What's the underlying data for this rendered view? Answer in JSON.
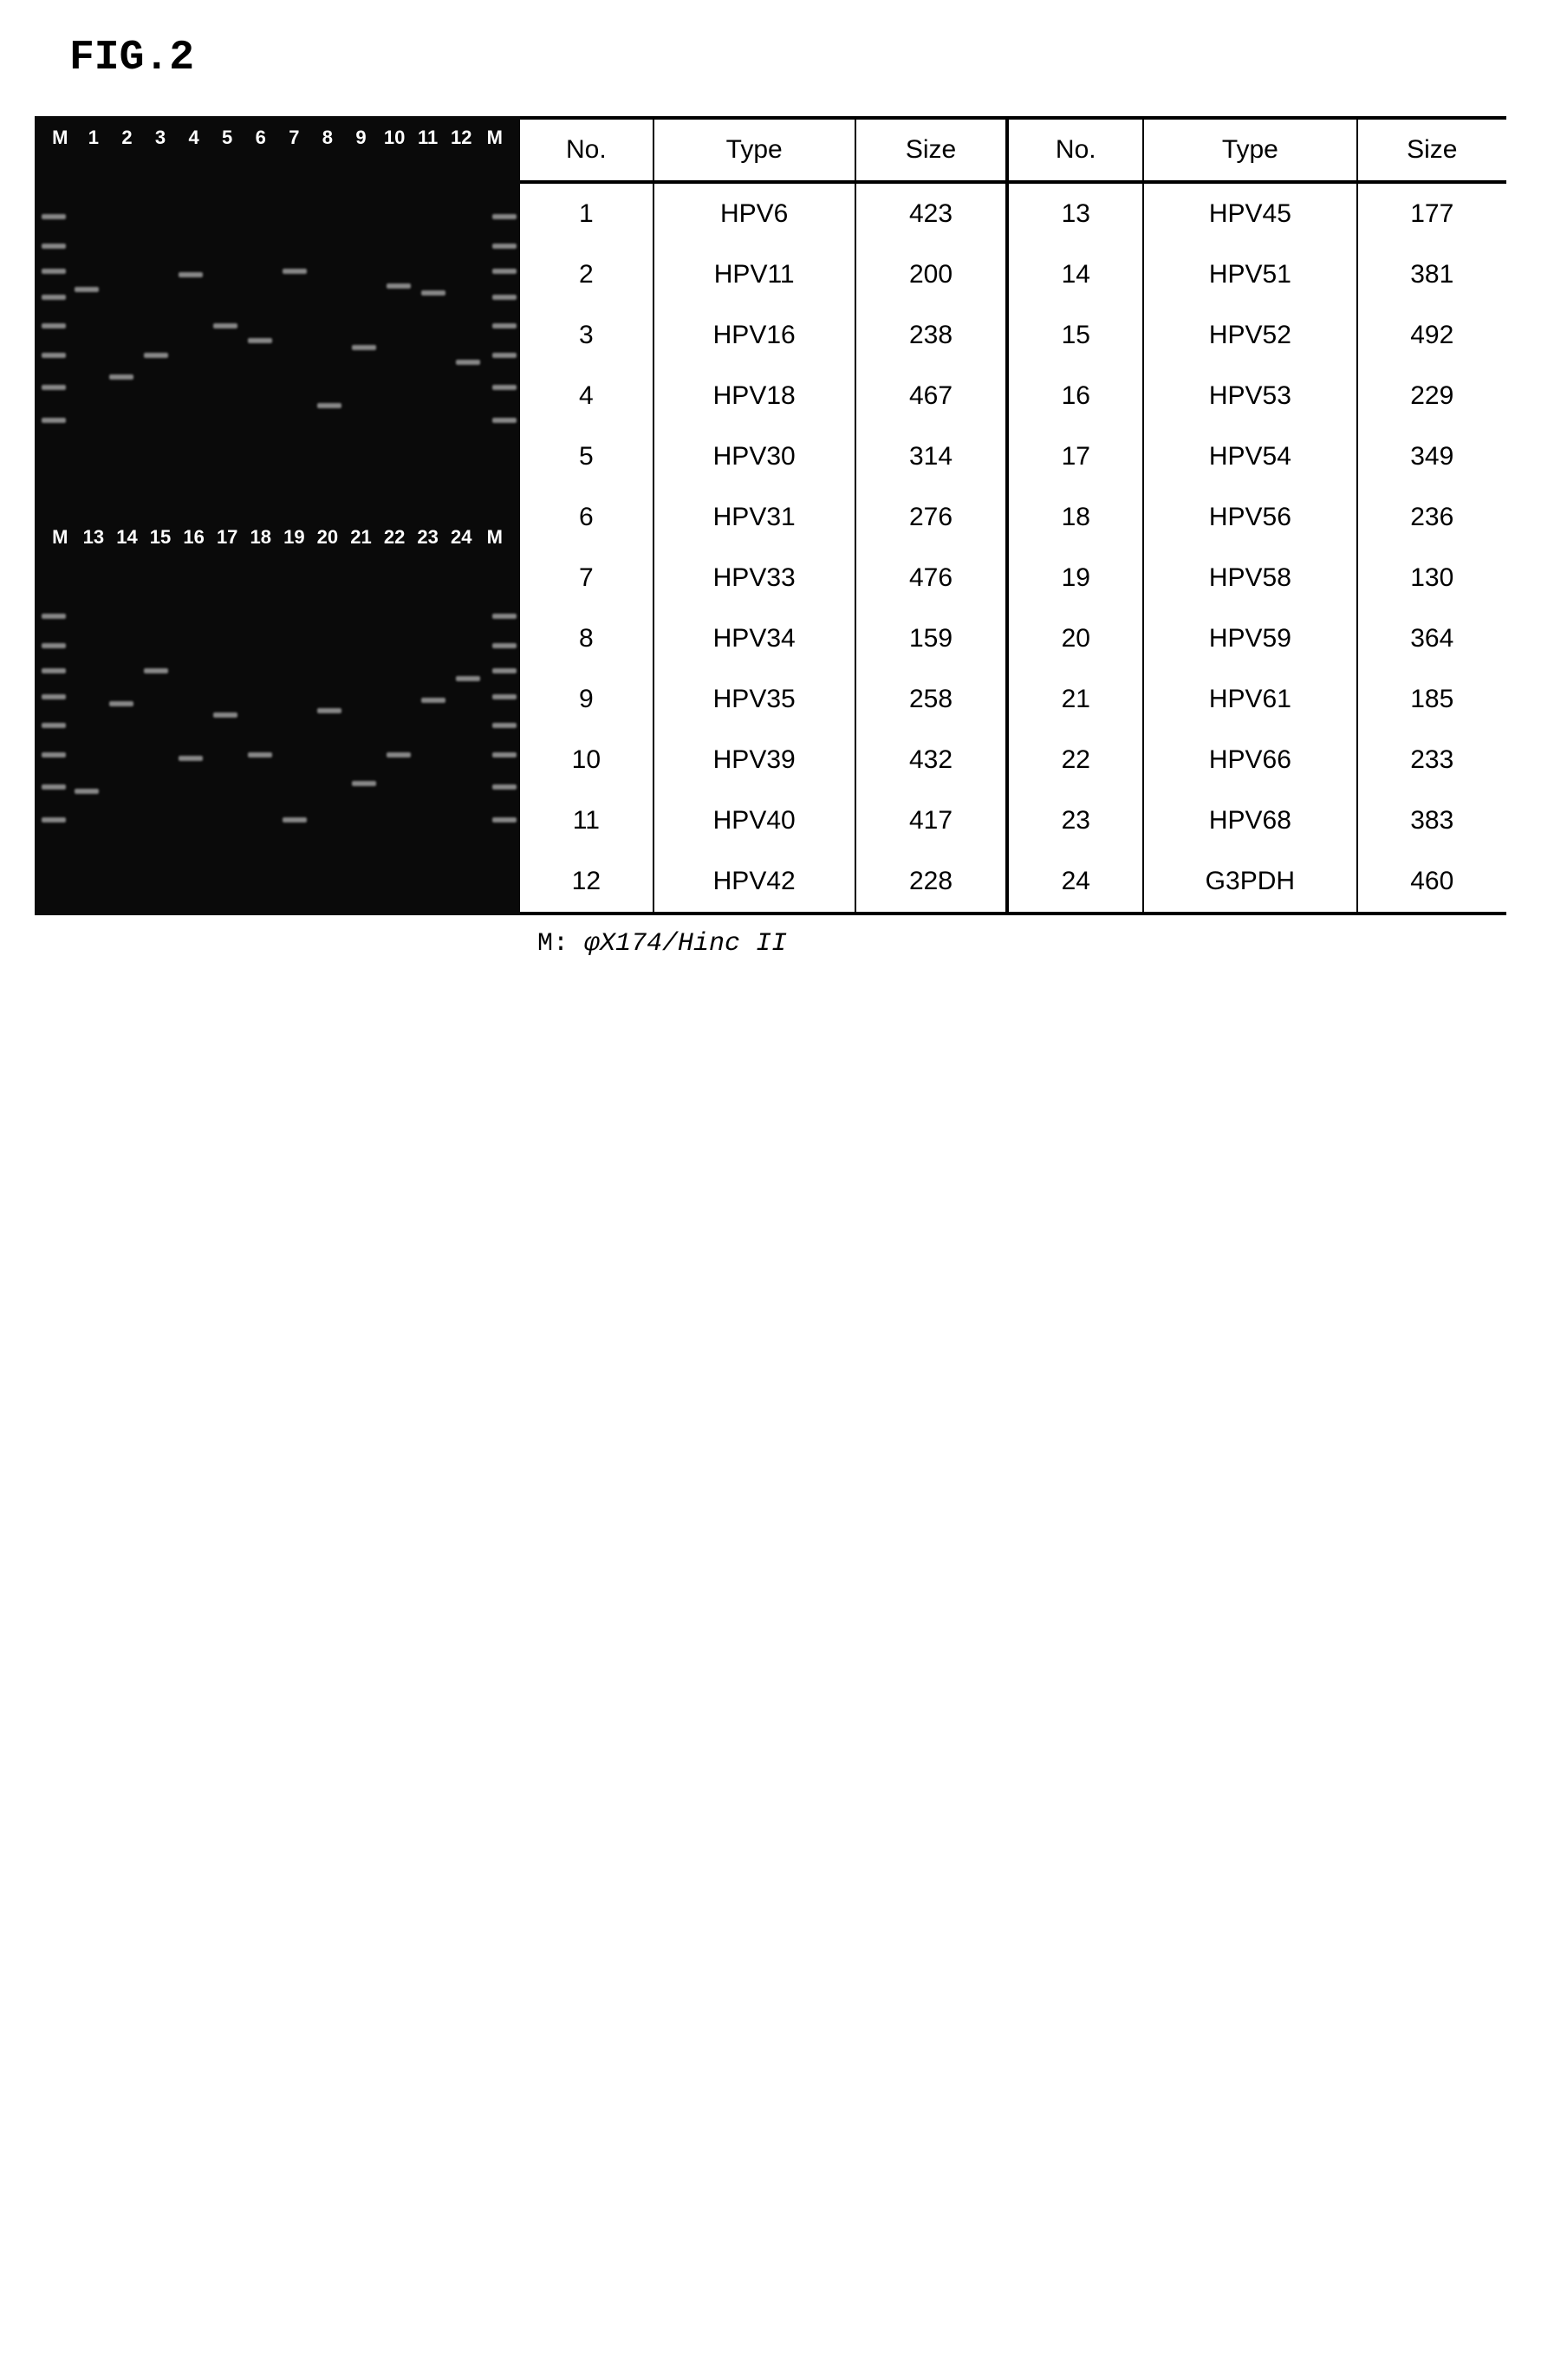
{
  "figure": {
    "title": "FIG.2",
    "footnote_prefix": "M: ",
    "footnote_marker": "φX174/Hinc II"
  },
  "gel": {
    "background": "#0a0a0a",
    "label_color": "#ffffff",
    "top_labels": [
      "M",
      "1",
      "2",
      "3",
      "4",
      "5",
      "6",
      "7",
      "8",
      "9",
      "10",
      "11",
      "12",
      "M"
    ],
    "bottom_labels": [
      "M",
      "13",
      "14",
      "15",
      "16",
      "17",
      "18",
      "19",
      "20",
      "21",
      "22",
      "23",
      "24",
      "M"
    ],
    "ladder_positions": [
      18,
      26,
      33,
      40,
      48,
      56,
      65,
      74
    ],
    "top_bands": [
      {
        "lane": 1,
        "y": 38
      },
      {
        "lane": 2,
        "y": 62
      },
      {
        "lane": 3,
        "y": 56
      },
      {
        "lane": 4,
        "y": 34
      },
      {
        "lane": 5,
        "y": 48
      },
      {
        "lane": 6,
        "y": 52
      },
      {
        "lane": 7,
        "y": 33
      },
      {
        "lane": 8,
        "y": 70
      },
      {
        "lane": 9,
        "y": 54
      },
      {
        "lane": 10,
        "y": 37
      },
      {
        "lane": 11,
        "y": 39
      },
      {
        "lane": 12,
        "y": 58
      }
    ],
    "bottom_bands": [
      {
        "lane": 1,
        "y": 66
      },
      {
        "lane": 2,
        "y": 42
      },
      {
        "lane": 3,
        "y": 33
      },
      {
        "lane": 4,
        "y": 57
      },
      {
        "lane": 5,
        "y": 45
      },
      {
        "lane": 6,
        "y": 56
      },
      {
        "lane": 7,
        "y": 74
      },
      {
        "lane": 8,
        "y": 44
      },
      {
        "lane": 9,
        "y": 64
      },
      {
        "lane": 10,
        "y": 56
      },
      {
        "lane": 11,
        "y": 41
      },
      {
        "lane": 12,
        "y": 35
      }
    ]
  },
  "table": {
    "headers": [
      "No.",
      "Type",
      "Size",
      "No.",
      "Type",
      "Size"
    ],
    "rows": [
      {
        "n1": "1",
        "t1": "HPV6",
        "s1": "423",
        "n2": "13",
        "t2": "HPV45",
        "s2": "177"
      },
      {
        "n1": "2",
        "t1": "HPV11",
        "s1": "200",
        "n2": "14",
        "t2": "HPV51",
        "s2": "381"
      },
      {
        "n1": "3",
        "t1": "HPV16",
        "s1": "238",
        "n2": "15",
        "t2": "HPV52",
        "s2": "492"
      },
      {
        "n1": "4",
        "t1": "HPV18",
        "s1": "467",
        "n2": "16",
        "t2": "HPV53",
        "s2": "229"
      },
      {
        "n1": "5",
        "t1": "HPV30",
        "s1": "314",
        "n2": "17",
        "t2": "HPV54",
        "s2": "349"
      },
      {
        "n1": "6",
        "t1": "HPV31",
        "s1": "276",
        "n2": "18",
        "t2": "HPV56",
        "s2": "236"
      },
      {
        "n1": "7",
        "t1": "HPV33",
        "s1": "476",
        "n2": "19",
        "t2": "HPV58",
        "s2": "130"
      },
      {
        "n1": "8",
        "t1": "HPV34",
        "s1": "159",
        "n2": "20",
        "t2": "HPV59",
        "s2": "364"
      },
      {
        "n1": "9",
        "t1": "HPV35",
        "s1": "258",
        "n2": "21",
        "t2": "HPV61",
        "s2": "185"
      },
      {
        "n1": "10",
        "t1": "HPV39",
        "s1": "432",
        "n2": "22",
        "t2": "HPV66",
        "s2": "233"
      },
      {
        "n1": "11",
        "t1": "HPV40",
        "s1": "417",
        "n2": "23",
        "t2": "HPV68",
        "s2": "383"
      },
      {
        "n1": "12",
        "t1": "HPV42",
        "s1": "228",
        "n2": "24",
        "t2": "G3PDH",
        "s2": "460"
      }
    ]
  }
}
